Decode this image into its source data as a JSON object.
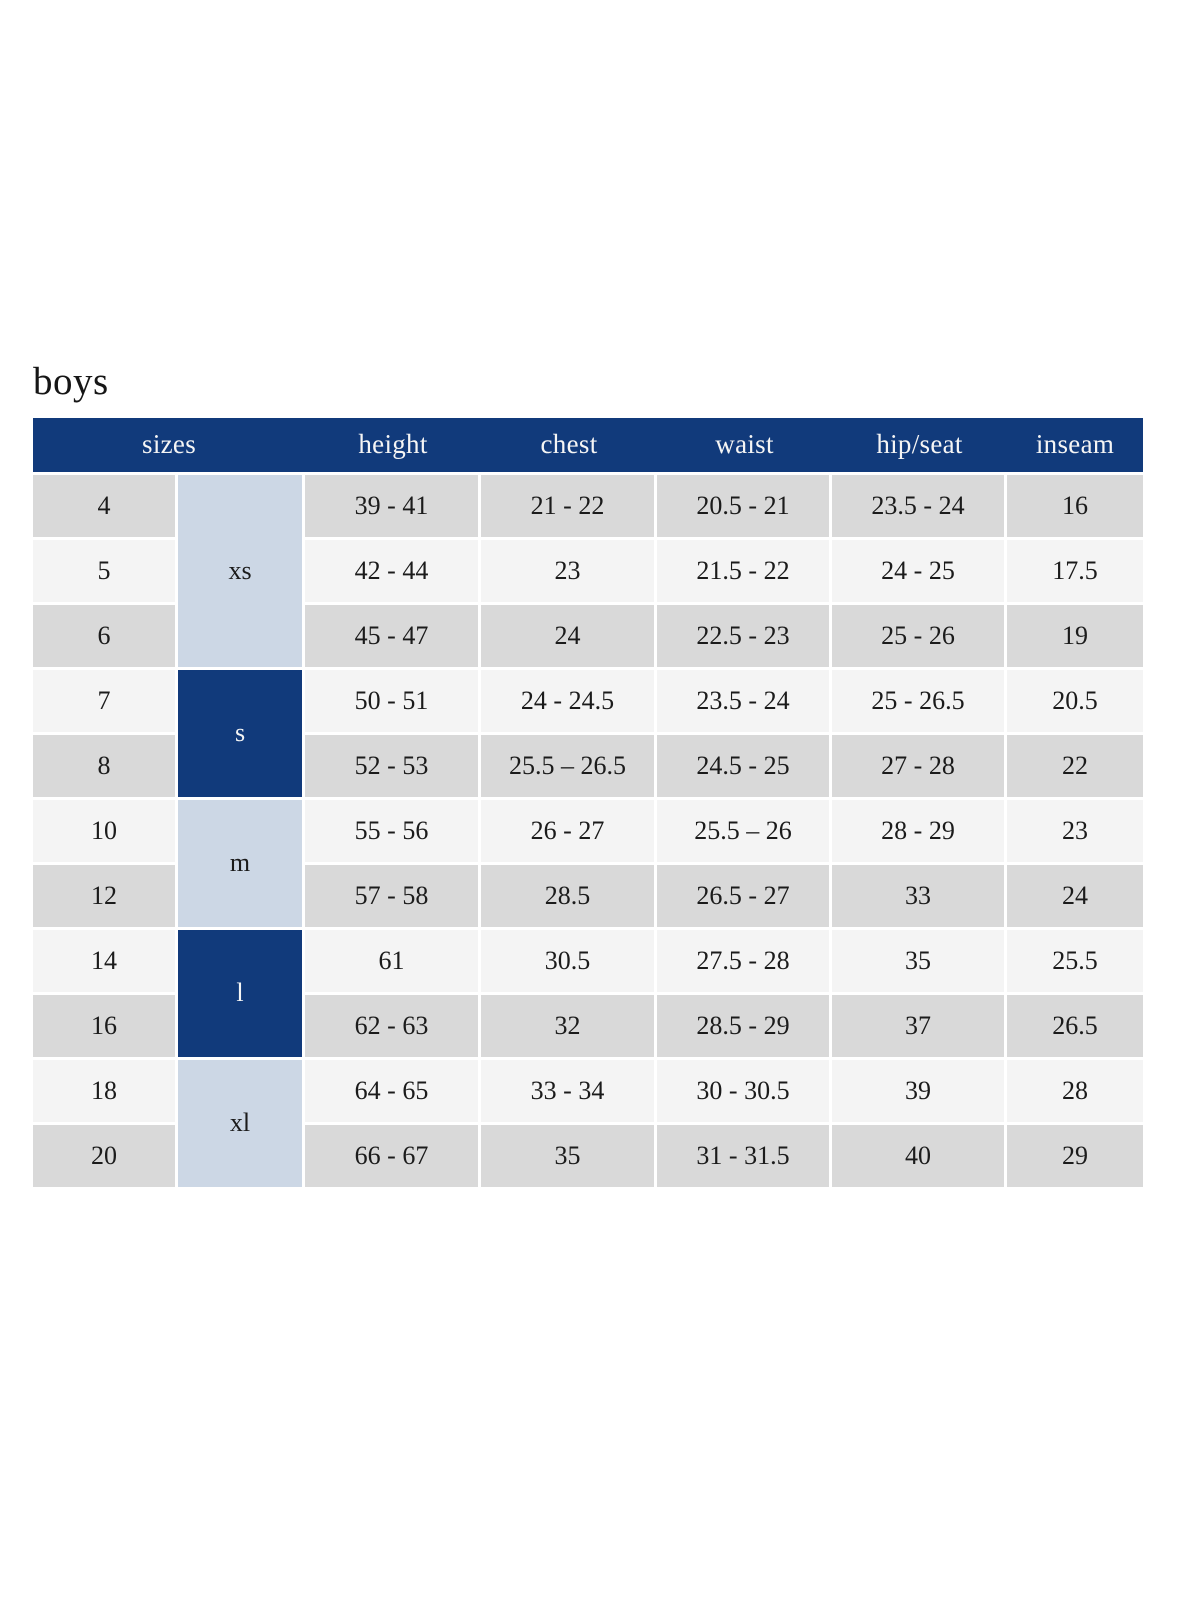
{
  "title": "boys",
  "columns": {
    "sizes": "sizes",
    "height": "height",
    "chest": "chest",
    "waist": "waist",
    "hip_seat": "hip/seat",
    "inseam": "inseam"
  },
  "colors": {
    "header_navy": "#113a7b",
    "group_dark_blue": "#113a7b",
    "group_light_blue": "#ccd7e5",
    "row_gray": "#d9d9d9",
    "row_light": "#f4f4f4",
    "text_dark": "#1b1b1b",
    "text_light": "#f5f5f5"
  },
  "chart_data": {
    "type": "table",
    "title": "boys",
    "column_headers": [
      "sizes",
      "height",
      "chest",
      "waist",
      "hip/seat",
      "inseam"
    ],
    "notes": "sizes header spans the size-number and size-group columns; size-group cells span multiple rows",
    "groups": [
      {
        "group": "xs",
        "shade": "light",
        "rows": [
          {
            "size": "4",
            "height": "39 - 41",
            "chest": "21 - 22",
            "waist": "20.5 - 21",
            "hip_seat": "23.5 - 24",
            "inseam": "16"
          },
          {
            "size": "5",
            "height": "42 - 44",
            "chest": "23",
            "waist": "21.5 - 22",
            "hip_seat": "24 - 25",
            "inseam": "17.5"
          },
          {
            "size": "6",
            "height": "45 - 47",
            "chest": "24",
            "waist": "22.5 - 23",
            "hip_seat": "25 - 26",
            "inseam": "19"
          }
        ]
      },
      {
        "group": "s",
        "shade": "dark",
        "rows": [
          {
            "size": "7",
            "height": "50 - 51",
            "chest": "24 - 24.5",
            "waist": "23.5 - 24",
            "hip_seat": "25 - 26.5",
            "inseam": "20.5"
          },
          {
            "size": "8",
            "height": "52 - 53",
            "chest": "25.5 – 26.5",
            "waist": "24.5 - 25",
            "hip_seat": "27 - 28",
            "inseam": "22"
          }
        ]
      },
      {
        "group": "m",
        "shade": "light",
        "rows": [
          {
            "size": "10",
            "height": "55 - 56",
            "chest": "26 - 27",
            "waist": "25.5 – 26",
            "hip_seat": "28 - 29",
            "inseam": "23"
          },
          {
            "size": "12",
            "height": "57 - 58",
            "chest": "28.5",
            "waist": "26.5 - 27",
            "hip_seat": "33",
            "inseam": "24"
          }
        ]
      },
      {
        "group": "l",
        "shade": "dark",
        "rows": [
          {
            "size": "14",
            "height": "61",
            "chest": "30.5",
            "waist": "27.5 - 28",
            "hip_seat": "35",
            "inseam": "25.5"
          },
          {
            "size": "16",
            "height": "62 - 63",
            "chest": "32",
            "waist": "28.5 - 29",
            "hip_seat": "37",
            "inseam": "26.5"
          }
        ]
      },
      {
        "group": "xl",
        "shade": "light",
        "rows": [
          {
            "size": "18",
            "height": "64 - 65",
            "chest": "33 - 34",
            "waist": "30 - 30.5",
            "hip_seat": "39",
            "inseam": "28"
          },
          {
            "size": "20",
            "height": "66 - 67",
            "chest": "35",
            "waist": "31 - 31.5",
            "hip_seat": "40",
            "inseam": "29"
          }
        ]
      }
    ]
  }
}
